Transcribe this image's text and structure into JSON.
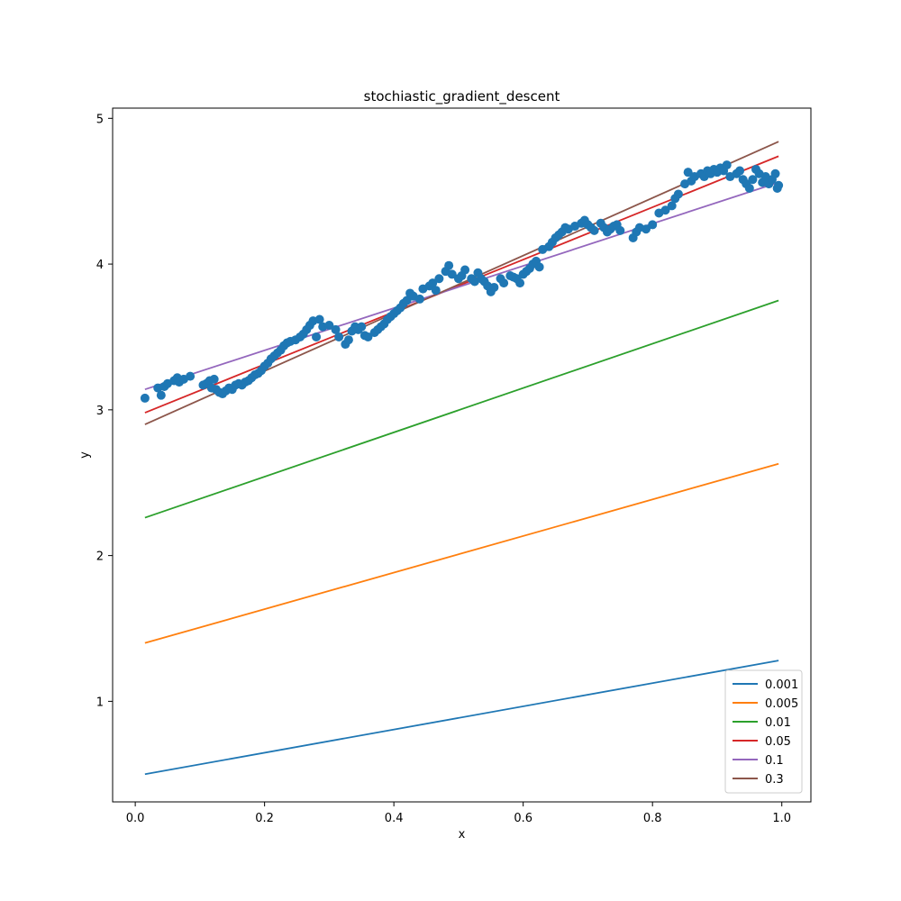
{
  "chart_data": {
    "type": "scatter",
    "title": "stochiastic_gradient_descent",
    "xlabel": "x",
    "ylabel": "y",
    "xlim": [
      -0.035,
      1.045
    ],
    "ylim": [
      0.31,
      5.07
    ],
    "xticks": [
      0.0,
      0.2,
      0.4,
      0.6,
      0.8,
      1.0
    ],
    "xtick_labels": [
      "0.0",
      "0.2",
      "0.4",
      "0.6",
      "0.8",
      "1.0"
    ],
    "yticks": [
      1,
      2,
      3,
      4,
      5
    ],
    "ytick_labels": [
      "1",
      "2",
      "3",
      "4",
      "5"
    ],
    "grid": false,
    "legend_position": "bottom-right",
    "scatter": {
      "color": "#1f77b4",
      "points": [
        [
          0.015,
          3.08
        ],
        [
          0.035,
          3.15
        ],
        [
          0.04,
          3.1
        ],
        [
          0.045,
          3.16
        ],
        [
          0.05,
          3.18
        ],
        [
          0.06,
          3.2
        ],
        [
          0.065,
          3.22
        ],
        [
          0.068,
          3.19
        ],
        [
          0.075,
          3.21
        ],
        [
          0.085,
          3.23
        ],
        [
          0.105,
          3.17
        ],
        [
          0.11,
          3.18
        ],
        [
          0.115,
          3.2
        ],
        [
          0.118,
          3.15
        ],
        [
          0.122,
          3.21
        ],
        [
          0.125,
          3.14
        ],
        [
          0.13,
          3.12
        ],
        [
          0.135,
          3.11
        ],
        [
          0.14,
          3.13
        ],
        [
          0.145,
          3.15
        ],
        [
          0.15,
          3.14
        ],
        [
          0.155,
          3.17
        ],
        [
          0.16,
          3.18
        ],
        [
          0.165,
          3.17
        ],
        [
          0.17,
          3.19
        ],
        [
          0.175,
          3.2
        ],
        [
          0.18,
          3.22
        ],
        [
          0.185,
          3.24
        ],
        [
          0.19,
          3.25
        ],
        [
          0.195,
          3.27
        ],
        [
          0.2,
          3.3
        ],
        [
          0.205,
          3.32
        ],
        [
          0.21,
          3.35
        ],
        [
          0.215,
          3.37
        ],
        [
          0.22,
          3.39
        ],
        [
          0.225,
          3.41
        ],
        [
          0.23,
          3.44
        ],
        [
          0.235,
          3.46
        ],
        [
          0.24,
          3.47
        ],
        [
          0.248,
          3.48
        ],
        [
          0.255,
          3.5
        ],
        [
          0.26,
          3.52
        ],
        [
          0.265,
          3.55
        ],
        [
          0.27,
          3.58
        ],
        [
          0.275,
          3.61
        ],
        [
          0.28,
          3.5
        ],
        [
          0.285,
          3.62
        ],
        [
          0.29,
          3.57
        ],
        [
          0.3,
          3.58
        ],
        [
          0.31,
          3.55
        ],
        [
          0.315,
          3.5
        ],
        [
          0.325,
          3.45
        ],
        [
          0.33,
          3.48
        ],
        [
          0.335,
          3.54
        ],
        [
          0.34,
          3.57
        ],
        [
          0.345,
          3.55
        ],
        [
          0.35,
          3.57
        ],
        [
          0.355,
          3.51
        ],
        [
          0.36,
          3.5
        ],
        [
          0.37,
          3.53
        ],
        [
          0.375,
          3.55
        ],
        [
          0.38,
          3.57
        ],
        [
          0.385,
          3.59
        ],
        [
          0.39,
          3.62
        ],
        [
          0.395,
          3.64
        ],
        [
          0.4,
          3.66
        ],
        [
          0.405,
          3.68
        ],
        [
          0.41,
          3.7
        ],
        [
          0.415,
          3.73
        ],
        [
          0.42,
          3.75
        ],
        [
          0.425,
          3.8
        ],
        [
          0.43,
          3.78
        ],
        [
          0.44,
          3.76
        ],
        [
          0.445,
          3.83
        ],
        [
          0.455,
          3.85
        ],
        [
          0.46,
          3.87
        ],
        [
          0.465,
          3.82
        ],
        [
          0.47,
          3.9
        ],
        [
          0.48,
          3.95
        ],
        [
          0.485,
          3.99
        ],
        [
          0.49,
          3.93
        ],
        [
          0.5,
          3.9
        ],
        [
          0.505,
          3.92
        ],
        [
          0.51,
          3.96
        ],
        [
          0.52,
          3.9
        ],
        [
          0.525,
          3.88
        ],
        [
          0.53,
          3.94
        ],
        [
          0.535,
          3.9
        ],
        [
          0.54,
          3.88
        ],
        [
          0.545,
          3.85
        ],
        [
          0.55,
          3.81
        ],
        [
          0.555,
          3.84
        ],
        [
          0.565,
          3.9
        ],
        [
          0.57,
          3.87
        ],
        [
          0.58,
          3.92
        ],
        [
          0.585,
          3.91
        ],
        [
          0.59,
          3.9
        ],
        [
          0.595,
          3.87
        ],
        [
          0.6,
          3.93
        ],
        [
          0.605,
          3.95
        ],
        [
          0.61,
          3.97
        ],
        [
          0.615,
          4.0
        ],
        [
          0.62,
          4.02
        ],
        [
          0.625,
          3.98
        ],
        [
          0.63,
          4.1
        ],
        [
          0.64,
          4.12
        ],
        [
          0.645,
          4.15
        ],
        [
          0.65,
          4.18
        ],
        [
          0.655,
          4.2
        ],
        [
          0.66,
          4.22
        ],
        [
          0.665,
          4.25
        ],
        [
          0.67,
          4.24
        ],
        [
          0.68,
          4.26
        ],
        [
          0.69,
          4.28
        ],
        [
          0.695,
          4.3
        ],
        [
          0.7,
          4.27
        ],
        [
          0.705,
          4.25
        ],
        [
          0.71,
          4.23
        ],
        [
          0.72,
          4.28
        ],
        [
          0.725,
          4.25
        ],
        [
          0.73,
          4.22
        ],
        [
          0.735,
          4.24
        ],
        [
          0.74,
          4.26
        ],
        [
          0.745,
          4.27
        ],
        [
          0.75,
          4.23
        ],
        [
          0.77,
          4.18
        ],
        [
          0.775,
          4.22
        ],
        [
          0.78,
          4.25
        ],
        [
          0.79,
          4.24
        ],
        [
          0.8,
          4.27
        ],
        [
          0.81,
          4.35
        ],
        [
          0.82,
          4.37
        ],
        [
          0.83,
          4.4
        ],
        [
          0.835,
          4.45
        ],
        [
          0.84,
          4.48
        ],
        [
          0.85,
          4.55
        ],
        [
          0.855,
          4.63
        ],
        [
          0.86,
          4.57
        ],
        [
          0.865,
          4.6
        ],
        [
          0.875,
          4.62
        ],
        [
          0.88,
          4.6
        ],
        [
          0.885,
          4.64
        ],
        [
          0.89,
          4.62
        ],
        [
          0.895,
          4.65
        ],
        [
          0.9,
          4.63
        ],
        [
          0.905,
          4.66
        ],
        [
          0.91,
          4.64
        ],
        [
          0.915,
          4.68
        ],
        [
          0.92,
          4.6
        ],
        [
          0.93,
          4.62
        ],
        [
          0.935,
          4.64
        ],
        [
          0.94,
          4.58
        ],
        [
          0.945,
          4.55
        ],
        [
          0.95,
          4.52
        ],
        [
          0.955,
          4.58
        ],
        [
          0.96,
          4.65
        ],
        [
          0.965,
          4.62
        ],
        [
          0.97,
          4.56
        ],
        [
          0.975,
          4.6
        ],
        [
          0.98,
          4.55
        ],
        [
          0.985,
          4.58
        ],
        [
          0.99,
          4.62
        ],
        [
          0.993,
          4.52
        ],
        [
          0.995,
          4.54
        ]
      ]
    },
    "series": [
      {
        "name": "0.001",
        "color": "#1f77b4",
        "x": [
          0.015,
          0.995
        ],
        "y": [
          0.5,
          1.28
        ]
      },
      {
        "name": "0.005",
        "color": "#ff7f0e",
        "x": [
          0.015,
          0.995
        ],
        "y": [
          1.4,
          2.63
        ]
      },
      {
        "name": "0.01",
        "color": "#2ca02c",
        "x": [
          0.015,
          0.995
        ],
        "y": [
          2.26,
          3.75
        ]
      },
      {
        "name": "0.05",
        "color": "#d62728",
        "x": [
          0.015,
          0.995
        ],
        "y": [
          2.98,
          4.74
        ]
      },
      {
        "name": "0.1",
        "color": "#9467bd",
        "x": [
          0.015,
          0.995
        ],
        "y": [
          3.14,
          4.56
        ]
      },
      {
        "name": "0.3",
        "color": "#8c564b",
        "x": [
          0.015,
          0.995
        ],
        "y": [
          2.9,
          4.84
        ]
      }
    ]
  }
}
